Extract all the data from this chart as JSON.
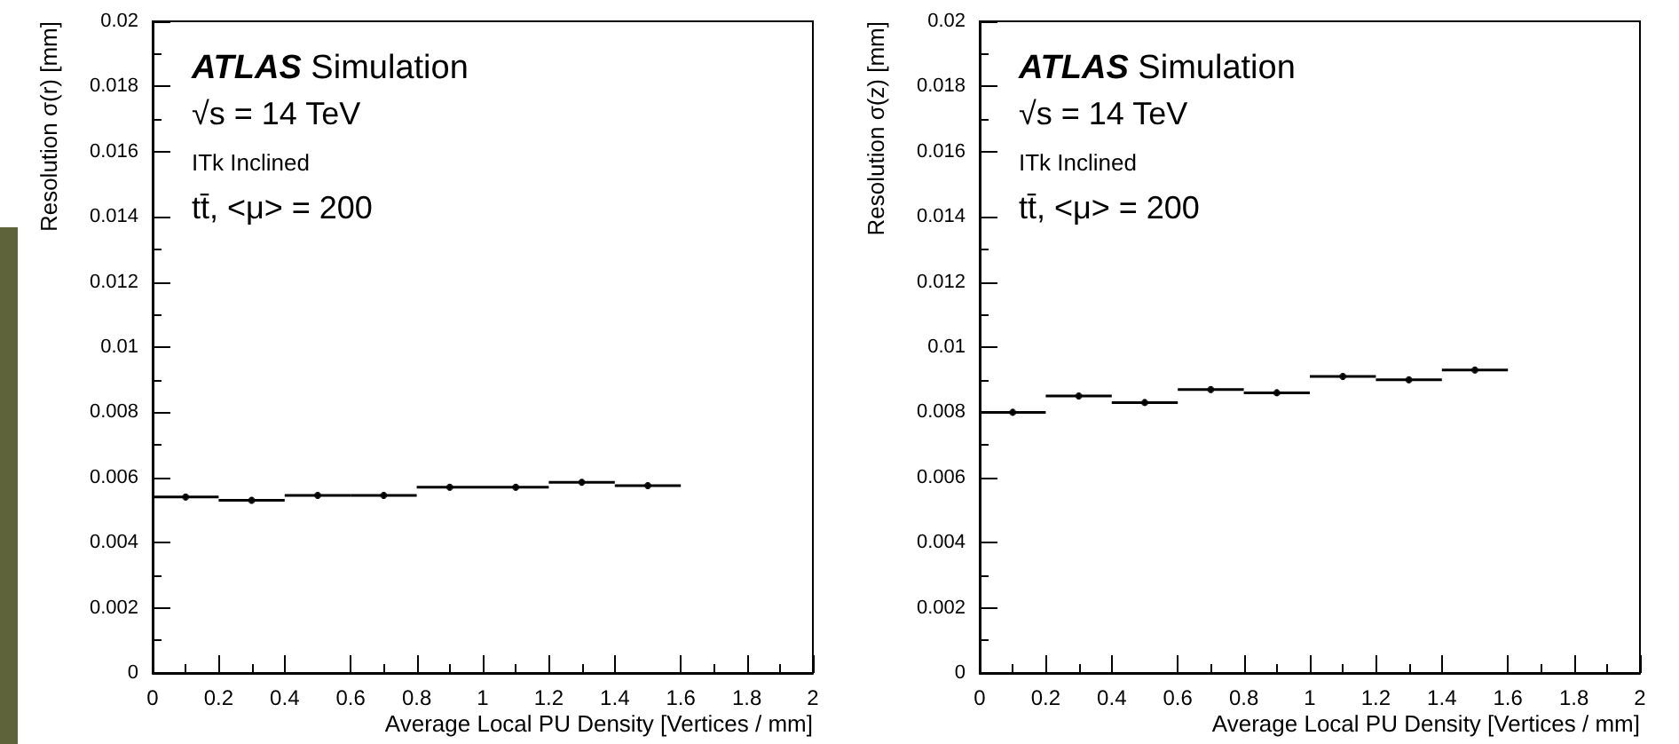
{
  "chart_data": [
    {
      "type": "scatter",
      "ylabel": "Resolution σ(r) [mm]",
      "xlabel": "Average Local PU Density [Vertices / mm]",
      "annotations": [
        "ATLAS Simulation",
        "√s = 14 TeV",
        "ITk Inclined",
        "tt̄, <μ> = 200"
      ],
      "x": [
        0.1,
        0.3,
        0.5,
        0.7,
        0.9,
        1.1,
        1.3,
        1.5
      ],
      "series": [
        {
          "color": "#000000",
          "values": [
            0.0054,
            0.0053,
            0.00545,
            0.00545,
            0.0057,
            0.0057,
            0.00585,
            0.00575
          ],
          "errors": [
            0.0001,
            0.0001,
            0.0001,
            0.0001,
            0.0001,
            0.0001,
            0.0001,
            0.0001
          ],
          "xerrors": [
            0.1,
            0.1,
            0.1,
            0.1,
            0.1,
            0.1,
            0.1,
            0.1
          ]
        }
      ],
      "xlim": [
        0,
        2
      ],
      "xticks": [
        0,
        0.2,
        0.4,
        0.6,
        0.8,
        1,
        1.2,
        1.4,
        1.6,
        1.8,
        2
      ],
      "ylim": [
        0,
        0.02
      ],
      "yticks": [
        0,
        0.002,
        0.004,
        0.006,
        0.008,
        0.01,
        0.012,
        0.014,
        0.016,
        0.018,
        0.02
      ],
      "marker": "circle"
    },
    {
      "type": "scatter",
      "ylabel": "Resolution σ(z) [mm]",
      "xlabel": "Average Local PU Density [Vertices / mm]",
      "annotations": [
        "ATLAS Simulation",
        "√s = 14 TeV",
        "ITk Inclined",
        "tt̄, <μ> = 200"
      ],
      "x": [
        0.1,
        0.3,
        0.5,
        0.7,
        0.9,
        1.1,
        1.3,
        1.5
      ],
      "series": [
        {
          "color": "#000000",
          "values": [
            0.008,
            0.0085,
            0.0083,
            0.0087,
            0.0086,
            0.0091,
            0.009,
            0.0093
          ],
          "errors": [
            0.0001,
            0.0001,
            0.0001,
            0.0001,
            0.0001,
            0.0001,
            0.0001,
            0.0001
          ],
          "xerrors": [
            0.1,
            0.1,
            0.1,
            0.1,
            0.1,
            0.1,
            0.1,
            0.1
          ]
        }
      ],
      "xlim": [
        0,
        2
      ],
      "xticks": [
        0,
        0.2,
        0.4,
        0.6,
        0.8,
        1,
        1.2,
        1.4,
        1.6,
        1.8,
        2
      ],
      "ylim": [
        0,
        0.02
      ],
      "yticks": [
        0,
        0.002,
        0.004,
        0.006,
        0.008,
        0.01,
        0.012,
        0.014,
        0.016,
        0.018,
        0.02
      ],
      "marker": "circle"
    }
  ]
}
